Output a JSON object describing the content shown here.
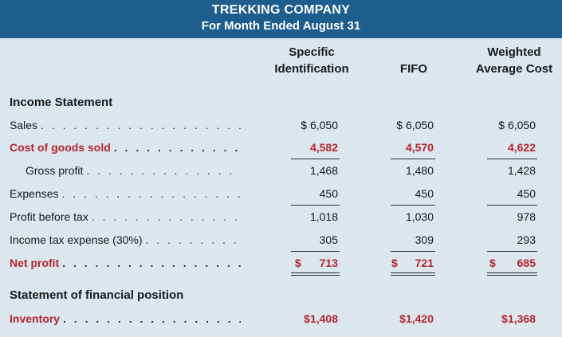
{
  "header": {
    "company": "TREKKING COMPANY",
    "period": "For Month Ended August 31"
  },
  "columns": {
    "c1_line1": "Specific",
    "c1_line2": "Identification",
    "c2": "FIFO",
    "c3_line1": "Weighted",
    "c3_line2": "Average Cost"
  },
  "sections": {
    "income": "Income Statement",
    "position": "Statement of financial position"
  },
  "dots": ". . . . . . . . . . . . . . . . . . . . . . . . . . . . . . . . . . . . . . . . .",
  "rows": {
    "sales": {
      "label": "Sales",
      "c1": "$ 6,050",
      "c2": "$ 6,050",
      "c3": "$ 6,050"
    },
    "cogs": {
      "label": "Cost of goods sold",
      "c1": "4,582",
      "c2": "4,570",
      "c3": "4,622"
    },
    "gross": {
      "label": "Gross profit",
      "c1": "1,468",
      "c2": "1,480",
      "c3": "1,428"
    },
    "expenses": {
      "label": "Expenses",
      "c1": "450",
      "c2": "450",
      "c3": "450"
    },
    "pbt": {
      "label": "Profit before tax",
      "c1": "1,018",
      "c2": "1,030",
      "c3": "978"
    },
    "tax": {
      "label": "Income tax expense (30%)",
      "c1": "305",
      "c2": "309",
      "c3": "293"
    },
    "net": {
      "label": "Net profit",
      "c1_sym": "$",
      "c1": "713",
      "c2_sym": "$",
      "c2": "721",
      "c3_sym": "$",
      "c3": "685"
    },
    "inventory": {
      "label": "Inventory",
      "c1": "$1,408",
      "c2": "$1,420",
      "c3": "$1,368"
    }
  },
  "colors": {
    "banner": "#1d5e8f",
    "background": "#dbe6ee",
    "accent_red": "#b5272d"
  }
}
